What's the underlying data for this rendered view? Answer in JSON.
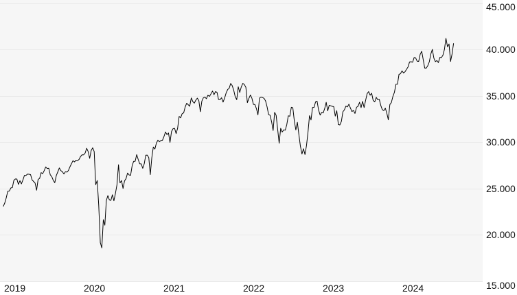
{
  "colors": {
    "page_background": "#ffffff",
    "plot_background": "#f6f6f6",
    "grid_line": "#e9e9e9",
    "series_line": "#000000",
    "label_text": "#111111"
  },
  "chart_data": {
    "type": "line",
    "title": "",
    "legend": "none",
    "grid": "horizontal",
    "ylim": [
      15000,
      45000
    ],
    "y_axis": {
      "tick_values": [
        45000,
        40000,
        35000,
        30000,
        25000,
        20000,
        15000
      ],
      "tick_labels": [
        "45.000",
        "40.000",
        "35.000",
        "30.000",
        "25.000",
        "20.000",
        "15.000"
      ],
      "side": "right"
    },
    "x_axis": {
      "tick_labels": [
        "2019",
        "2020",
        "2021",
        "2022",
        "2023",
        "2024"
      ],
      "tick_positions_years": [
        0,
        1,
        2,
        3,
        4,
        5
      ]
    },
    "series": [
      {
        "name": "index-price",
        "color": "#000000",
        "x_start_years": -0.011,
        "x_step_years": 0.019037,
        "values": [
          23062,
          23433,
          23996,
          24706,
          24737,
          25064,
          25106,
          25883,
          26032,
          26026,
          25450,
          25849,
          25502,
          25929,
          26425,
          26412,
          26560,
          26543,
          26505,
          25942,
          25764,
          25586,
          24815,
          25984,
          26090,
          26719,
          26600,
          26922,
          27332,
          27154,
          27192,
          26485,
          26287,
          25886,
          25629,
          26403,
          26797,
          27219,
          26935,
          26820,
          26574,
          26817,
          26770,
          26958,
          27347,
          27681,
          28005,
          27876,
          28051,
          28015,
          28135,
          28455,
          28645,
          28635,
          28824,
          29348,
          28990,
          28256,
          29103,
          29398,
          28992,
          25409,
          25865,
          23186,
          19174,
          18592,
          21637,
          21053,
          23719,
          24242,
          23775,
          23724,
          24331,
          23685,
          24465,
          25383,
          27572,
          25606,
          25871,
          25016,
          25827,
          26075,
          26672,
          26470,
          26428,
          27433,
          27931,
          27930,
          28654,
          28133,
          27666,
          27657,
          27174,
          27683,
          28587,
          28606,
          28336,
          26502,
          28323,
          29480,
          29263,
          29910,
          30218,
          30046,
          30179,
          30200,
          30606,
          31098,
          30814,
          30997,
          29983,
          31148,
          31458,
          31494,
          30932,
          31496,
          32779,
          32628,
          33073,
          33153,
          33801,
          34201,
          34043,
          33875,
          34778,
          34382,
          34208,
          34529,
          34756,
          34480,
          33290,
          34434,
          34786,
          34870,
          34688,
          35062,
          34935,
          35209,
          35515,
          35120,
          35456,
          35369,
          34608,
          34585,
          34798,
          34326,
          34746,
          35295,
          35677,
          35820,
          36328,
          36100,
          35602,
          34899,
          34580,
          35971,
          35365,
          35950,
          36338,
          36232,
          35912,
          34265,
          34725,
          35090,
          34738,
          34079,
          34059,
          33615,
          32944,
          34755,
          34861,
          34818,
          34721,
          34451,
          33811,
          32977,
          32899,
          32197,
          31262,
          33213,
          32900,
          31393,
          29889,
          31500,
          31097,
          31338,
          31288,
          31899,
          32845,
          32803,
          33761,
          33707,
          32283,
          31318,
          32152,
          30822,
          29590,
          28726,
          29297,
          28661,
          29635,
          31083,
          32862,
          32403,
          33748,
          33746,
          34347,
          34430,
          33476,
          32920,
          33204,
          33147,
          33631,
          34303,
          33375,
          33978,
          33926,
          33869,
          33827,
          32817,
          33391,
          31910,
          31862,
          32238,
          33274,
          33485,
          33886,
          33809,
          34098,
          33674,
          33301,
          33427,
          33093,
          33763,
          33877,
          34299,
          33727,
          34408,
          33735,
          34509,
          35228,
          35459,
          35066,
          35281,
          34501,
          34347,
          34838,
          34577,
          34618,
          33964,
          33508,
          33408,
          33670,
          33127,
          32418,
          34061,
          34283,
          34947,
          35390,
          36245,
          36248,
          37305,
          37386,
          37690,
          37466,
          37593,
          37864,
          38109,
          38654,
          38672,
          38628,
          39132,
          39087,
          38723,
          38715,
          39476,
          39807,
          38904,
          37983,
          37986,
          38240,
          38676,
          39513,
          40004,
          39070,
          38686,
          38799,
          38589,
          39150,
          39119,
          39376,
          40001,
          41198,
          40287,
          40589,
          38703,
          39497,
          40659
        ]
      }
    ]
  }
}
